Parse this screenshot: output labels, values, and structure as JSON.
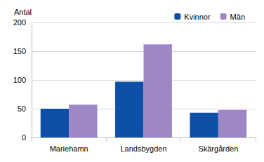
{
  "chart_data": {
    "type": "bar",
    "ylabel": "Antal",
    "categories": [
      "Mariehamn",
      "Landsbygden",
      "Skärgården"
    ],
    "series": [
      {
        "name": "Kvinnor",
        "color": "#0d4fa6",
        "values": [
          50,
          97,
          43
        ]
      },
      {
        "name": "Män",
        "color": "#9d87c6",
        "values": [
          57,
          162,
          48
        ]
      }
    ],
    "ylim": [
      0,
      200
    ],
    "yticks": [
      0,
      50,
      100,
      150,
      200
    ],
    "grid": true,
    "legend": "top-right"
  }
}
